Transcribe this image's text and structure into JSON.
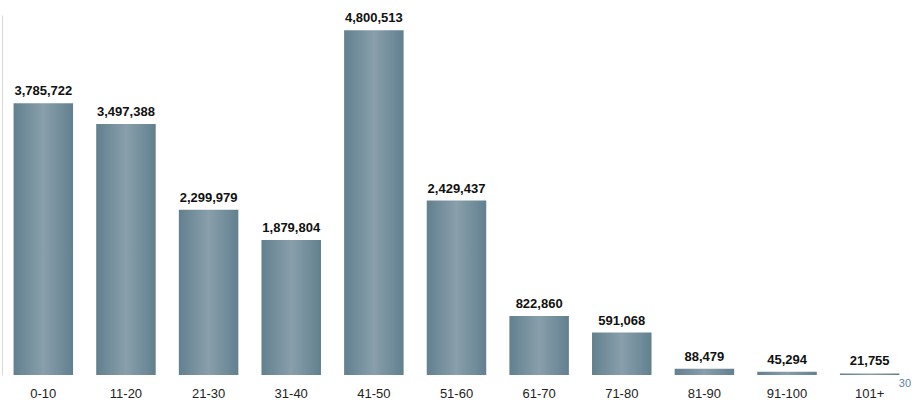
{
  "chart_data": {
    "type": "bar",
    "categories": [
      "0-10",
      "11-20",
      "21-30",
      "31-40",
      "41-50",
      "51-60",
      "61-70",
      "71-80",
      "81-90",
      "91-100",
      "101+"
    ],
    "values": [
      3785722,
      3497388,
      2299979,
      1879804,
      4800513,
      2429437,
      822860,
      591068,
      88479,
      45294,
      21755
    ],
    "value_labels": [
      "3,785,722",
      "3,497,388",
      "2,299,979",
      "1,879,804",
      "4,800,513",
      "2,429,437",
      "822,860",
      "591,068",
      "88,479",
      "45,294",
      "21,755"
    ],
    "color": "#62808f",
    "ylim": [
      0,
      5000000
    ],
    "grid": false,
    "data_labels": true,
    "tick_labels": "x",
    "annotations": [
      "30"
    ]
  }
}
